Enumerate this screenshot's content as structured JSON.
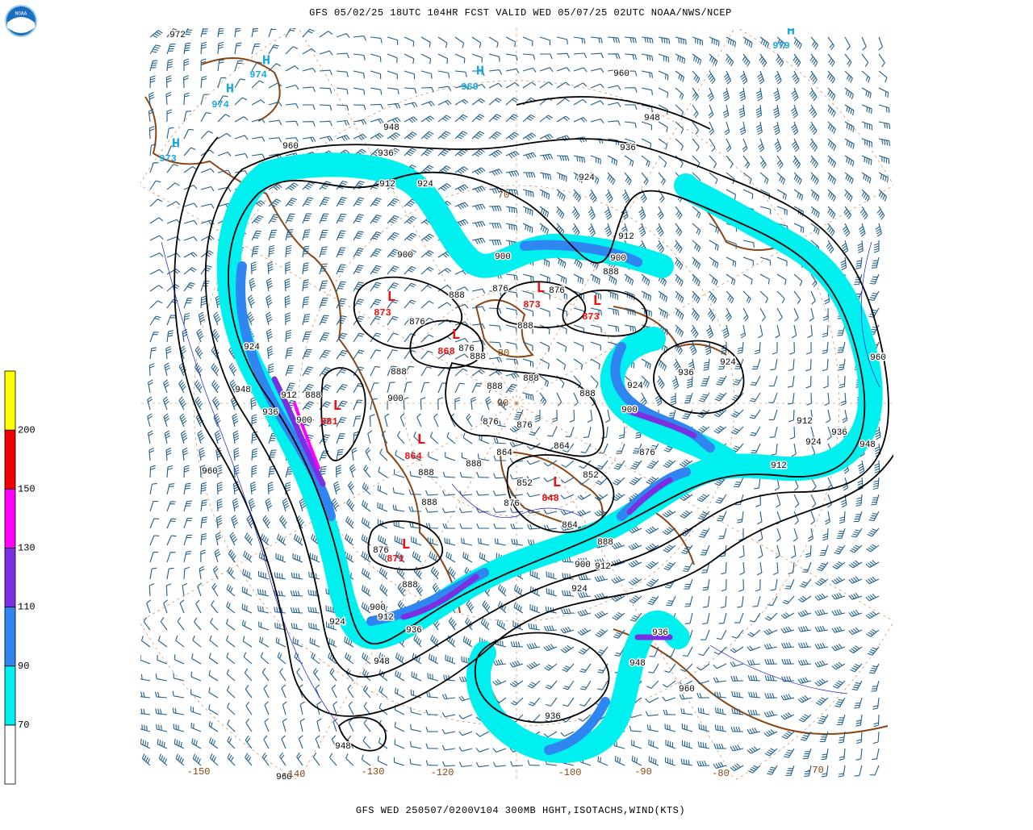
{
  "header": {
    "title": "GFS 05/02/25 18UTC 104HR FCST VALID WED 05/07/25 02UTC NOAA/NWS/NCEP"
  },
  "footer": {
    "caption": "GFS WED 250507/0200V104 300MB HGHT,ISOTACHS,WIND(KTS)"
  },
  "logo": "NOAA",
  "colorbar": {
    "levels": [
      70,
      90,
      110,
      130,
      150,
      200
    ],
    "colors": [
      "#ffffff",
      "#00f0f0",
      "#2f86f0",
      "#7a2fe0",
      "#ff00ff",
      "#ee0000",
      "#ffff00"
    ]
  },
  "highs": [
    {
      "symbol": "H",
      "value": "974"
    },
    {
      "symbol": "H",
      "value": "974"
    },
    {
      "symbol": "H",
      "value": "973"
    },
    {
      "symbol": "H",
      "value": "969"
    },
    {
      "symbol": "H",
      "value": "979"
    }
  ],
  "lows": [
    {
      "symbol": "L",
      "value": "873"
    },
    {
      "symbol": "L",
      "value": "868"
    },
    {
      "symbol": "L",
      "value": "873"
    },
    {
      "symbol": "L",
      "value": "873"
    },
    {
      "symbol": "L",
      "value": "881"
    },
    {
      "symbol": "L",
      "value": "864"
    },
    {
      "symbol": "L",
      "value": "848"
    },
    {
      "symbol": "L",
      "value": "871"
    }
  ],
  "contour_labels": [
    "972",
    "960",
    "948",
    "948",
    "960",
    "936",
    "936",
    "924",
    "912",
    "924",
    "912",
    "900",
    "900",
    "900",
    "888",
    "876",
    "876",
    "888",
    "876",
    "888",
    "876",
    "888",
    "924",
    "888",
    "888",
    "924",
    "936",
    "948",
    "912",
    "888",
    "900",
    "888",
    "888",
    "924",
    "936",
    "900",
    "876",
    "876",
    "900",
    "912",
    "936",
    "924",
    "948",
    "960",
    "864",
    "864",
    "876",
    "960",
    "888",
    "888",
    "912",
    "852",
    "852",
    "876",
    "864",
    "888",
    "888",
    "876",
    "900",
    "912",
    "888",
    "924",
    "900",
    "912",
    "924",
    "936",
    "948",
    "948",
    "936",
    "960",
    "936",
    "948",
    "960"
  ],
  "longitude_labels": [
    "-150",
    "-140",
    "-130",
    "-120",
    "-100",
    "-90",
    "-80",
    "-70",
    "90",
    "80",
    "70"
  ]
}
